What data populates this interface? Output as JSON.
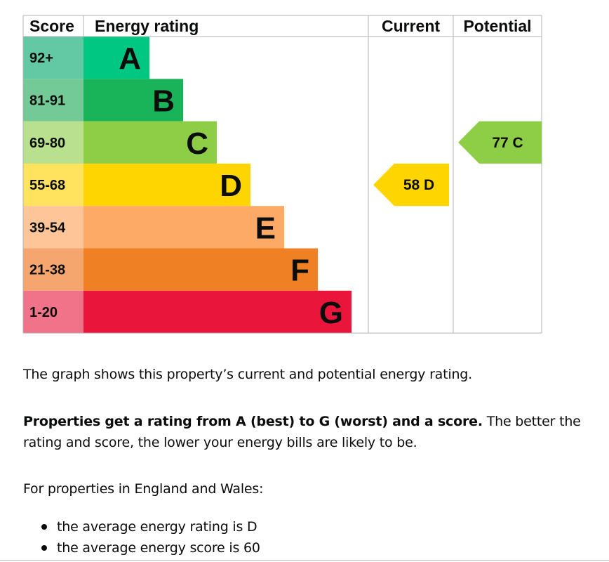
{
  "chart_data": {
    "type": "bar",
    "headers": {
      "score": "Score",
      "rating": "Energy rating",
      "current": "Current",
      "potential": "Potential"
    },
    "bands": [
      {
        "letter": "A",
        "range": "92+",
        "min": 92,
        "max": 100,
        "color": "#00c781",
        "score_color": "#63c8a4"
      },
      {
        "letter": "B",
        "range": "81-91",
        "min": 81,
        "max": 91,
        "color": "#19b459",
        "score_color": "#74ca97"
      },
      {
        "letter": "C",
        "range": "69-80",
        "min": 69,
        "max": 80,
        "color": "#8dce46",
        "score_color": "#b9e08e"
      },
      {
        "letter": "D",
        "range": "55-68",
        "min": 55,
        "max": 68,
        "color": "#ffd500",
        "score_color": "#ffe25e"
      },
      {
        "letter": "E",
        "range": "39-54",
        "min": 39,
        "max": 54,
        "color": "#fcaa65",
        "score_color": "#fdc598"
      },
      {
        "letter": "F",
        "range": "21-38",
        "min": 21,
        "max": 38,
        "color": "#ef8023",
        "score_color": "#f4a66e"
      },
      {
        "letter": "G",
        "range": "1-20",
        "min": 1,
        "max": 20,
        "color": "#e9153b",
        "score_color": "#f07389"
      }
    ],
    "current": {
      "score": 58,
      "band": "D",
      "label": "58  D"
    },
    "potential": {
      "score": 77,
      "band": "C",
      "label": "77  C"
    }
  },
  "text": {
    "graph_caption": "The graph shows this property’s current and potential energy rating.",
    "ratings_bold": "Properties get a rating from A (best) to G (worst) and a score.",
    "ratings_rest": " The better the rating and score, the lower your energy bills are likely to be.",
    "england_intro": "For properties in England and Wales:",
    "averages": [
      "the average energy rating is D",
      "the average energy score is 60"
    ]
  }
}
